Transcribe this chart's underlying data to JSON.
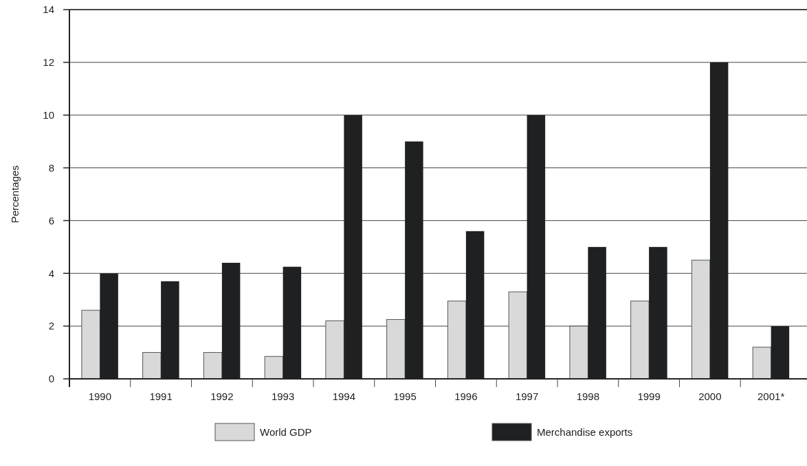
{
  "chart_data": {
    "type": "bar",
    "ylabel": "Percentages",
    "categories": [
      "1990",
      "1991",
      "1992",
      "1993",
      "1994",
      "1995",
      "1996",
      "1997",
      "1998",
      "1999",
      "2000",
      "2001*"
    ],
    "series": [
      {
        "name": "World GDP",
        "color": "#d9d9d9",
        "values": [
          2.6,
          1.0,
          1.0,
          0.85,
          2.2,
          2.25,
          2.95,
          3.3,
          2.0,
          2.95,
          4.5,
          1.2
        ]
      },
      {
        "name": "Merchandise exports",
        "color": "#1f2022",
        "values": [
          4.0,
          3.7,
          4.4,
          4.25,
          10,
          9,
          5.6,
          10,
          5.0,
          5.0,
          12,
          2.0
        ]
      }
    ],
    "ylim": [
      0,
      14
    ],
    "yticks": [
      0,
      2,
      4,
      6,
      8,
      10,
      12,
      14
    ],
    "grid": "y",
    "legend": "bottom"
  }
}
